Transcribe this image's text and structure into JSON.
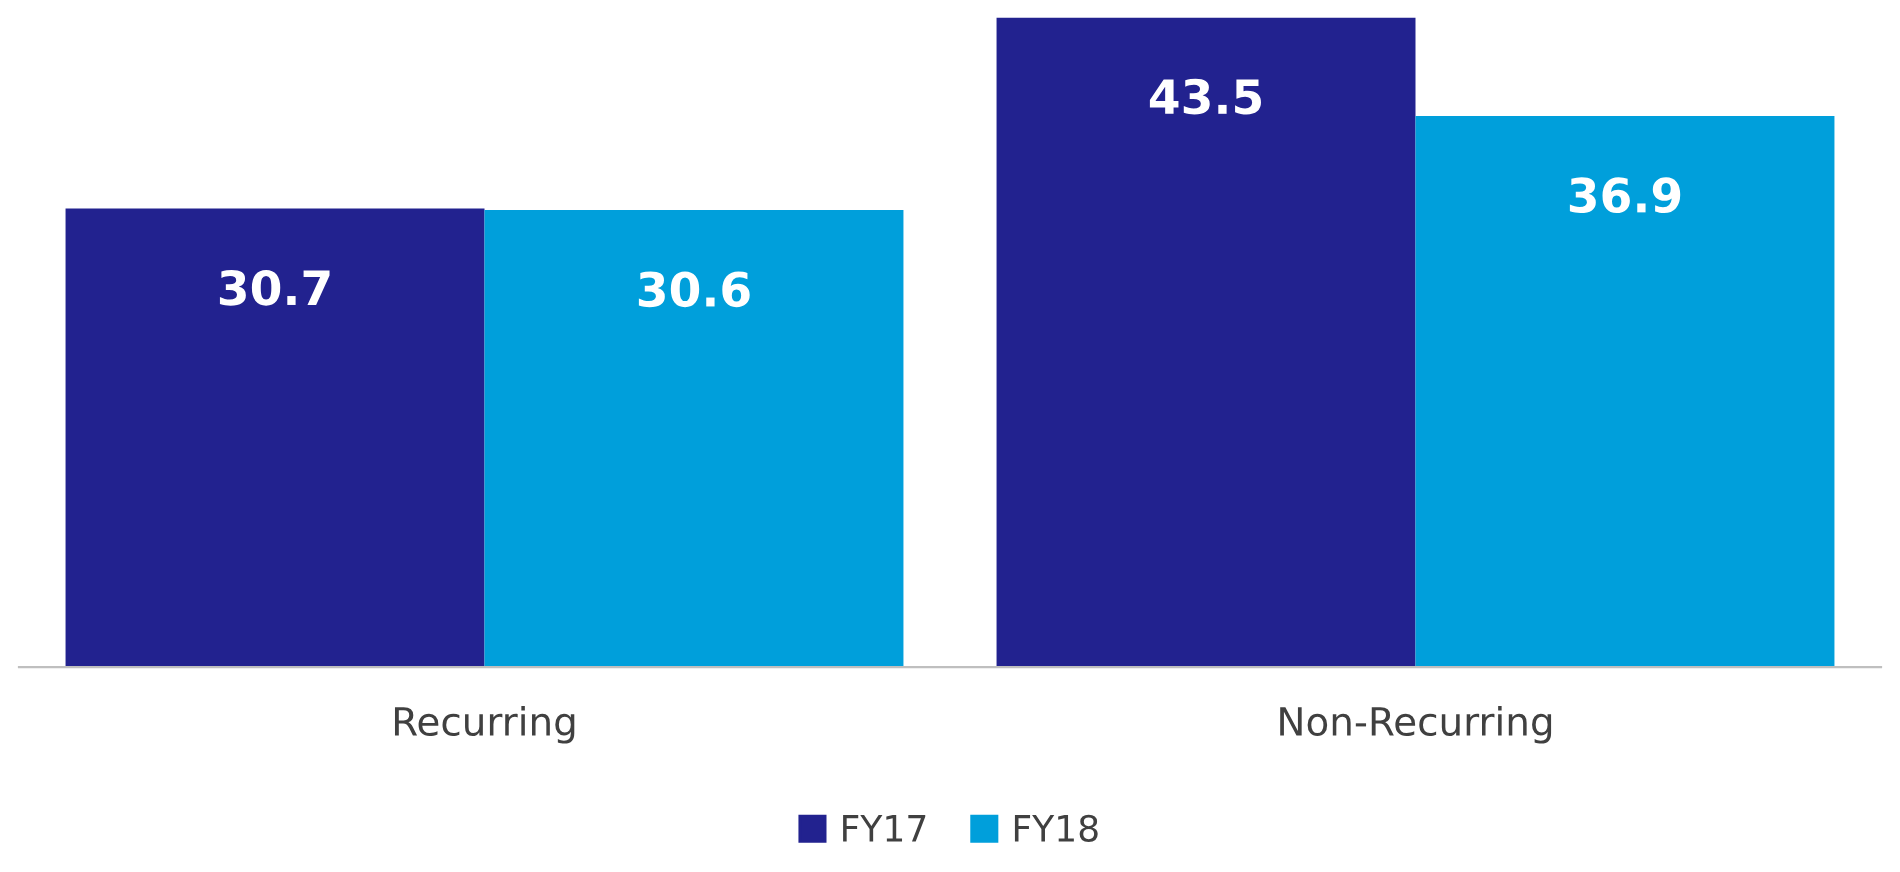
{
  "chart_data": {
    "type": "bar",
    "categories": [
      "Recurring",
      "Non-Recurring"
    ],
    "series": [
      {
        "name": "FY17",
        "color": "#22228f",
        "values": [
          30.7,
          43.5
        ]
      },
      {
        "name": "FY18",
        "color": "#009fdb",
        "values": [
          30.6,
          36.9
        ]
      }
    ],
    "data_labels": true,
    "legend": "bottom",
    "grid": false
  }
}
